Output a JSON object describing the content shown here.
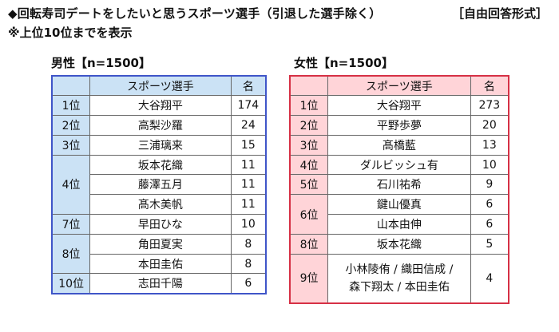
{
  "header": {
    "title": "◆回転寿司デートをしたいと思うスポーツ選手（引退した選手除く）",
    "format": "［自由回答形式］",
    "note": "※上位10位までを表示"
  },
  "male": {
    "label": "男性【n=1500】",
    "headers": {
      "name": "スポーツ選手",
      "count": "名"
    },
    "rows": [
      {
        "rank": "1位",
        "name": "大谷翔平",
        "count": "174"
      },
      {
        "rank": "2位",
        "name": "高梨沙羅",
        "count": "24"
      },
      {
        "rank": "3位",
        "name": "三浦璃来",
        "count": "15"
      },
      {
        "rank": "4位",
        "name": "坂本花織",
        "count": "11"
      },
      {
        "rank": "",
        "name": "藤澤五月",
        "count": "11"
      },
      {
        "rank": "",
        "name": "髙木美帆",
        "count": "11"
      },
      {
        "rank": "7位",
        "name": "早田ひな",
        "count": "10"
      },
      {
        "rank": "8位",
        "name": "角田夏実",
        "count": "8"
      },
      {
        "rank": "",
        "name": "本田圭佑",
        "count": "8"
      },
      {
        "rank": "10位",
        "name": "志田千陽",
        "count": "6"
      }
    ]
  },
  "female": {
    "label": "女性【n=1500】",
    "headers": {
      "name": "スポーツ選手",
      "count": "名"
    },
    "rows": [
      {
        "rank": "1位",
        "name": "大谷翔平",
        "count": "273"
      },
      {
        "rank": "2位",
        "name": "平野歩夢",
        "count": "20"
      },
      {
        "rank": "3位",
        "name": "髙橋藍",
        "count": "13"
      },
      {
        "rank": "4位",
        "name": "ダルビッシュ有",
        "count": "10"
      },
      {
        "rank": "5位",
        "name": "石川祐希",
        "count": "9"
      },
      {
        "rank": "6位",
        "name": "鍵山優真",
        "count": "6"
      },
      {
        "rank": "",
        "name": "山本由伸",
        "count": "6"
      },
      {
        "rank": "8位",
        "name": "坂本花織",
        "count": "5"
      },
      {
        "rank": "9位",
        "name_line1": "小林陵侑 / 織田信成 /",
        "name_line2": "森下翔太 / 本田圭佑",
        "count": "4"
      }
    ]
  }
}
